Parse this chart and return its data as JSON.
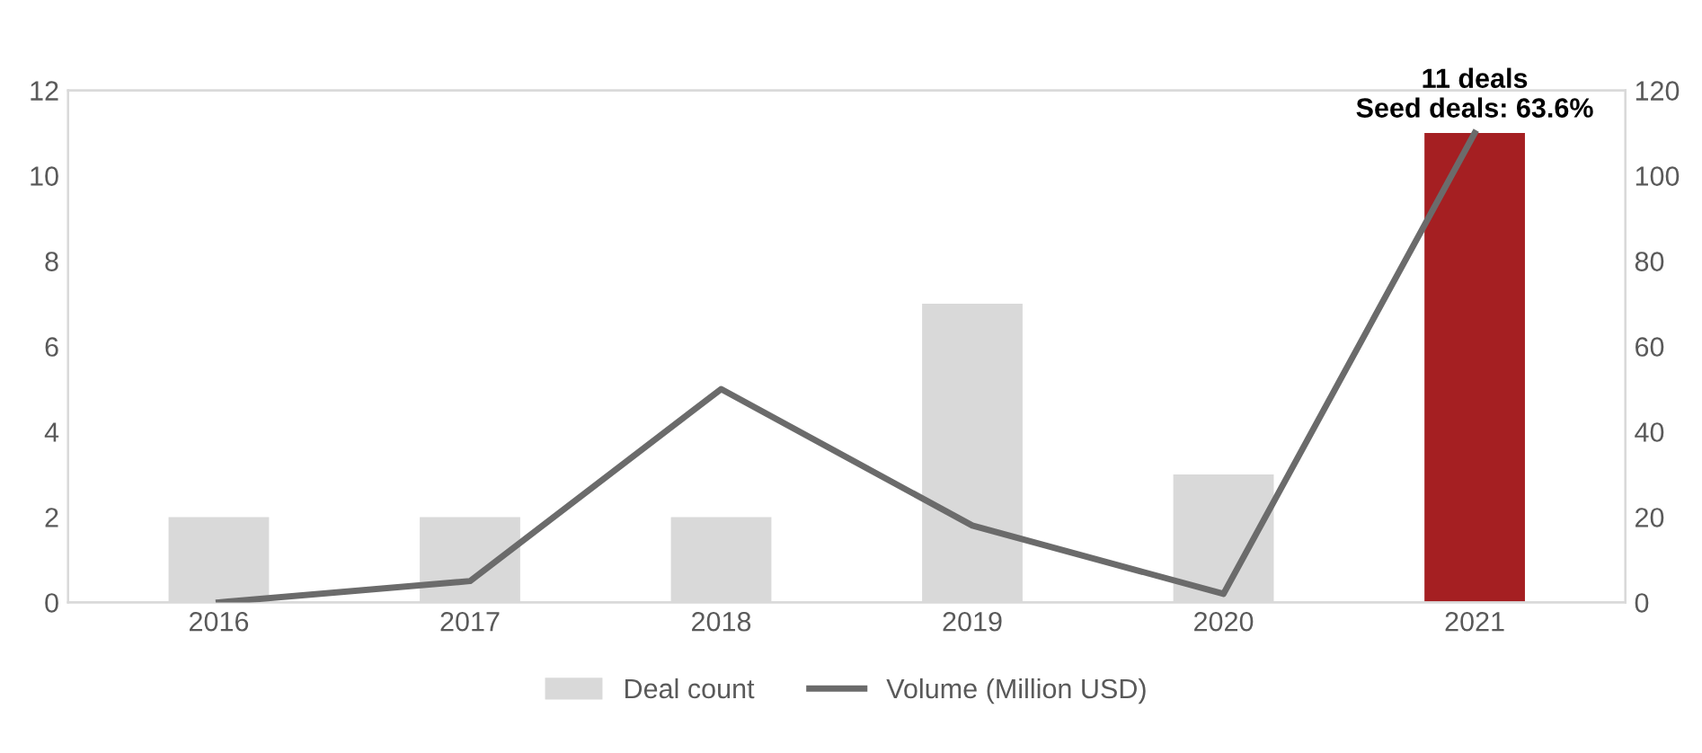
{
  "chart_data": {
    "type": "bar",
    "categories": [
      "2016",
      "2017",
      "2018",
      "2019",
      "2020",
      "2021"
    ],
    "series": [
      {
        "name": "Deal count",
        "color": "#d9d9d9",
        "colors": [
          "#d9d9d9",
          "#d9d9d9",
          "#d9d9d9",
          "#d9d9d9",
          "#d9d9d9",
          "#a51f22"
        ],
        "values": [
          2,
          2,
          2,
          7,
          3,
          11
        ]
      },
      {
        "name": "Volume (Million USD)",
        "type": "line",
        "axis": "y2",
        "color": "#6b6b6b",
        "values": [
          0,
          5,
          50,
          18,
          2,
          110
        ]
      }
    ],
    "ylim": [
      0,
      12
    ],
    "yticks": [
      0,
      2,
      4,
      6,
      8,
      10,
      12
    ],
    "y2lim": [
      0,
      120
    ],
    "y2ticks": [
      0,
      20,
      40,
      60,
      80,
      100,
      120
    ],
    "annotations": [
      {
        "text": "11 deals\nSeed deals: 63.6%",
        "x": "2021",
        "y": 11
      }
    ],
    "grid": false,
    "legend": "bottom",
    "marker": "none",
    "line_style": "solid"
  }
}
